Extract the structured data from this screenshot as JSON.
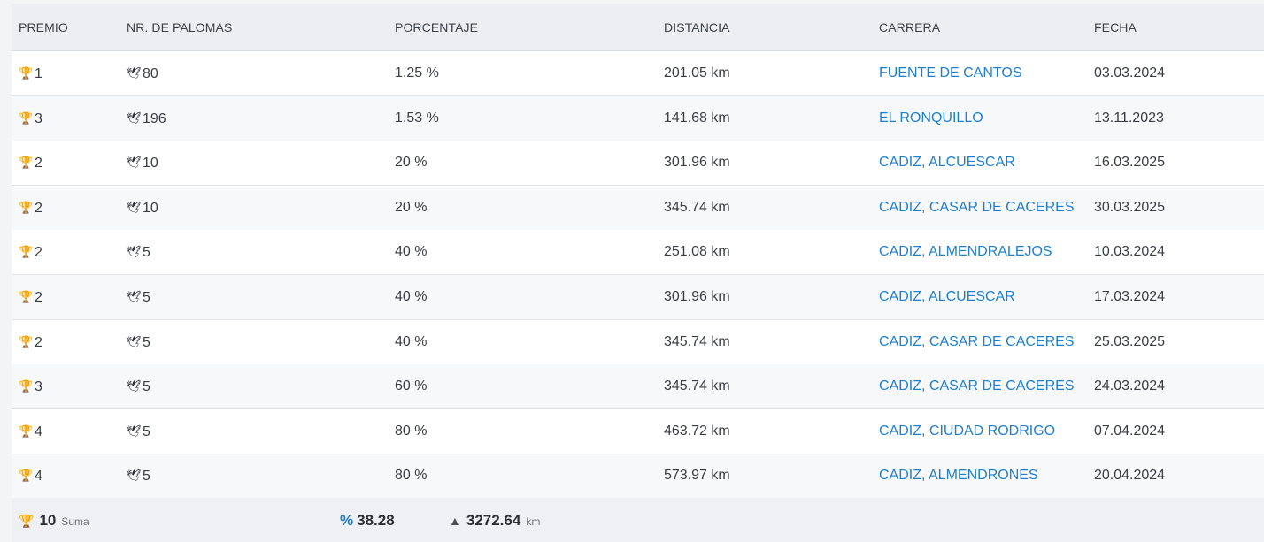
{
  "colors": {
    "link": "#1e7fd0",
    "gold_trophy": "#f0a500",
    "header_bg": "#eceef2",
    "alt_row_bg": "#f7f8fa"
  },
  "table": {
    "headers": {
      "premio": "PREMIO",
      "palomas": "NR. DE PALOMAS",
      "porcentaje": "PORCENTAJE",
      "distancia": "DISTANCIA",
      "carrera": "CARRERA",
      "fecha": "FECHA"
    },
    "rows": [
      {
        "premio": "1",
        "palomas": "80",
        "porcentaje": "1.25 %",
        "distancia": "201.05 km",
        "carrera": "FUENTE DE CANTOS",
        "fecha": "03.03.2024"
      },
      {
        "premio": "3",
        "palomas": "196",
        "porcentaje": "1.53 %",
        "distancia": "141.68 km",
        "carrera": "EL RONQUILLO",
        "fecha": "13.11.2023"
      },
      {
        "premio": "2",
        "palomas": "10",
        "porcentaje": "20 %",
        "distancia": "301.96 km",
        "carrera": "CADIZ, ALCUESCAR",
        "fecha": "16.03.2025"
      },
      {
        "premio": "2",
        "palomas": "10",
        "porcentaje": "20 %",
        "distancia": "345.74 km",
        "carrera": "CADIZ, CASAR DE CACERES",
        "fecha": "30.03.2025"
      },
      {
        "premio": "2",
        "palomas": "5",
        "porcentaje": "40 %",
        "distancia": "251.08 km",
        "carrera": "CADIZ, ALMENDRALEJOS",
        "fecha": "10.03.2024"
      },
      {
        "premio": "2",
        "palomas": "5",
        "porcentaje": "40 %",
        "distancia": "301.96 km",
        "carrera": "CADIZ, ALCUESCAR",
        "fecha": "17.03.2024"
      },
      {
        "premio": "2",
        "palomas": "5",
        "porcentaje": "40 %",
        "distancia": "345.74 km",
        "carrera": "CADIZ, CASAR DE CACERES",
        "fecha": "25.03.2025"
      },
      {
        "premio": "3",
        "palomas": "5",
        "porcentaje": "60 %",
        "distancia": "345.74 km",
        "carrera": "CADIZ, CASAR DE CACERES",
        "fecha": "24.03.2024"
      },
      {
        "premio": "4",
        "palomas": "5",
        "porcentaje": "80 %",
        "distancia": "463.72 km",
        "carrera": "CADIZ, CIUDAD RODRIGO",
        "fecha": "07.04.2024"
      },
      {
        "premio": "4",
        "palomas": "5",
        "porcentaje": "80 %",
        "distancia": "573.97 km",
        "carrera": "CADIZ, ALMENDRONES",
        "fecha": "20.04.2024"
      }
    ]
  },
  "footer": {
    "total_premios": "10",
    "suma_label": "Suma",
    "porcentaje_icon": "%",
    "porcentaje": "38.28",
    "distancia_total": "3272.64",
    "distancia_unit": "km"
  },
  "icons": {
    "premio": "trophy-icon",
    "palomas": "pigeon-icon",
    "distancia_total": "road-icon"
  }
}
